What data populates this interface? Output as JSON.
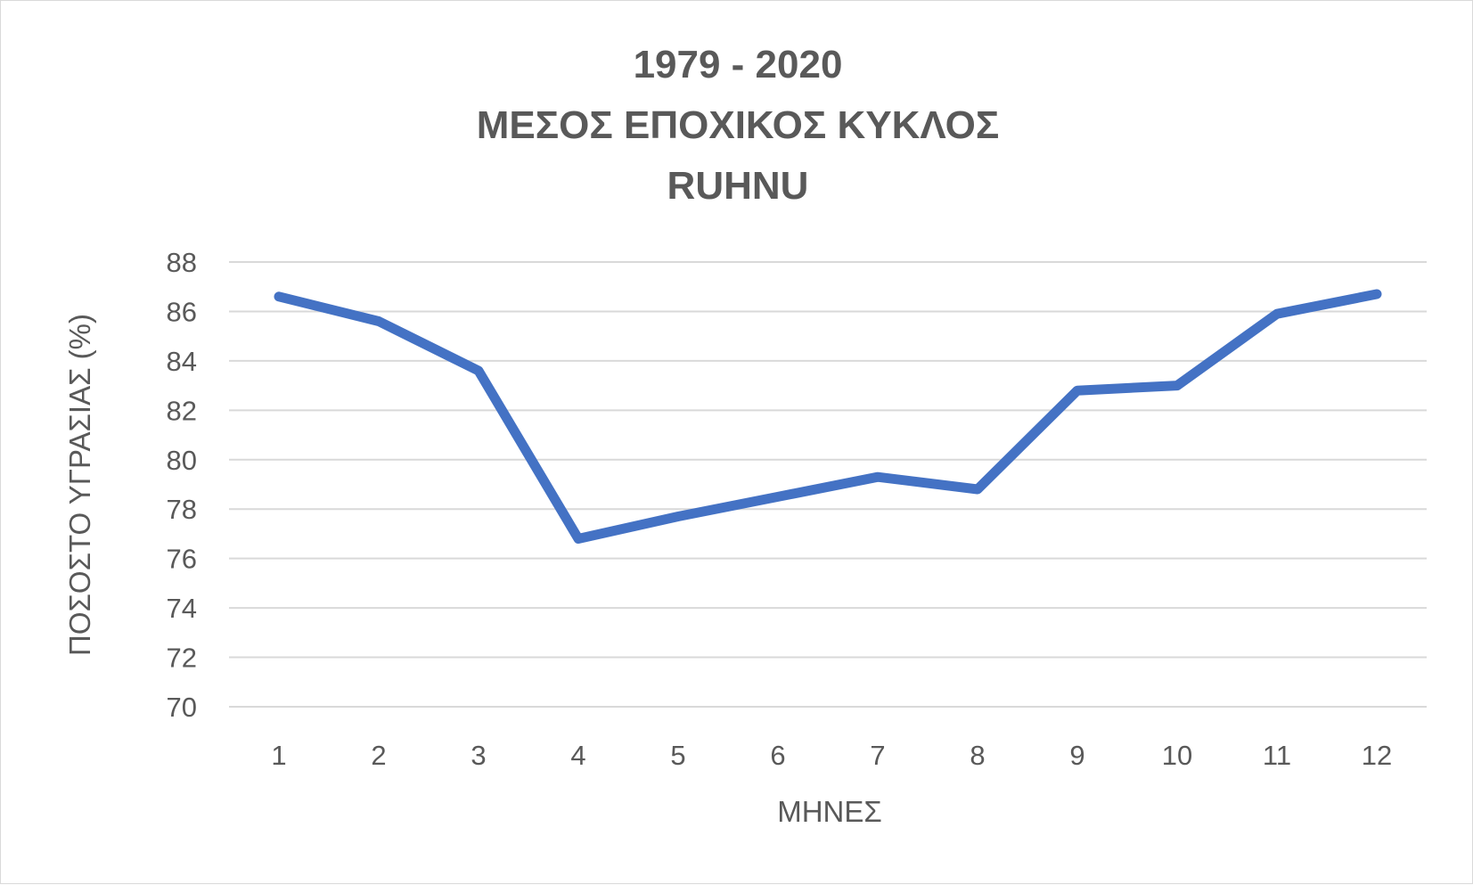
{
  "chart_data": {
    "type": "line",
    "title": [
      "1979 - 2020",
      "ΜΕΣΟΣ ΕΠΟΧΙΚΟΣ ΚΥΚΛΟΣ",
      "RUHNU"
    ],
    "xlabel": "ΜΗΝΕΣ",
    "ylabel": "ΠΟΣΟΣΤΟ ΥΓΡΑΣΙΑΣ (%)",
    "categories": [
      "1",
      "2",
      "3",
      "4",
      "5",
      "6",
      "7",
      "8",
      "9",
      "10",
      "11",
      "12"
    ],
    "yticks": [
      "70",
      "72",
      "74",
      "76",
      "78",
      "80",
      "82",
      "84",
      "86",
      "88"
    ],
    "ylim": [
      70,
      88
    ],
    "grid": true,
    "legend": "none",
    "series": [
      {
        "values": [
          86.6,
          85.6,
          83.6,
          76.8,
          77.7,
          78.5,
          79.3,
          78.8,
          82.8,
          83.0,
          85.9,
          86.7
        ]
      }
    ],
    "colors": {
      "series": "#4472c4",
      "text": "#595959",
      "grid": "#d9d9d9"
    }
  }
}
